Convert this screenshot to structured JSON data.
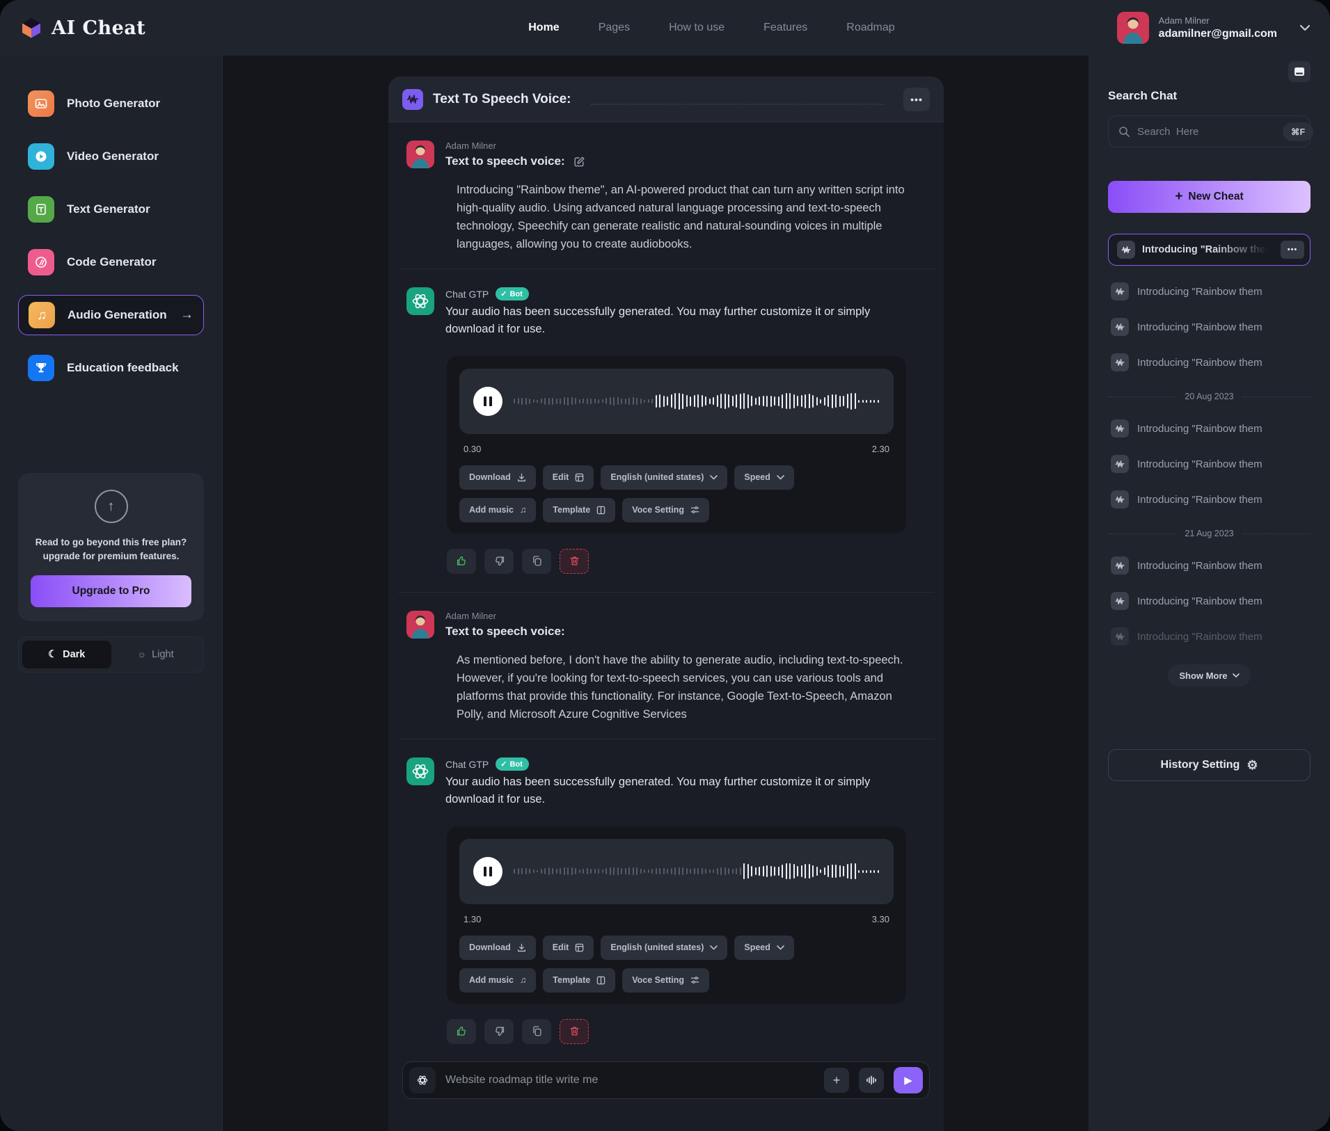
{
  "colors": {
    "accent_purple": "#8b5cf6",
    "gradient_from": "#8a4ef7",
    "gradient_to": "#dcc1ff",
    "bot_badge_teal": "#2fbfa4",
    "thumb_up_green": "#4cc05e",
    "trash_red": "#e0505e",
    "chatgpt_green": "#19a37f",
    "panel_bg": "#1a1d25",
    "navbar_bg": "#20242d"
  },
  "nav": {
    "logo_text": "AI Cheat",
    "items": [
      "Home",
      "Pages",
      "How to use",
      "Features",
      "Roadmap"
    ],
    "active_item": "Home",
    "user": {
      "name": "Adam Milner",
      "email": "adamilner@gmail.com"
    }
  },
  "sidebar": {
    "items": [
      {
        "label": "Photo Generator"
      },
      {
        "label": "Video Generator"
      },
      {
        "label": "Text Generator"
      },
      {
        "label": "Code Generator"
      },
      {
        "label": "Audio Generation"
      },
      {
        "label": "Education feedback"
      }
    ],
    "selected_item": "Audio Generation",
    "upgrade": {
      "line1": "Read to go beyond this free plan?",
      "line2": "upgrade for premium features.",
      "button": "Upgrade to Pro"
    },
    "theme": {
      "dark": "Dark",
      "light": "Light"
    }
  },
  "chat": {
    "title": "Text To Speech Voice:",
    "messages": [
      {
        "name": "Adam Milner",
        "prompt": "Text to speech voice:",
        "body": "Introducing \"Rainbow theme\", an AI-powered product that can turn any written script into high-quality audio. Using advanced natural language processing and text-to-speech technology, Speechify can generate realistic and natural-sounding voices in multiple languages, allowing you to create audiobooks."
      },
      {
        "name": "Chat GTP",
        "badge": "Bot",
        "body": "Your audio has been successfully generated. You may further customize it or simply download it for use.",
        "time_start": "0.30",
        "time_end": "2.30"
      },
      {
        "name": "Adam Milner",
        "prompt": "Text to speech voice:",
        "body": "As mentioned before, I don't have the ability to generate audio, including text-to-speech. However, if you're looking for text-to-speech services, you can use various tools and platforms that provide this functionality. For instance, Google Text-to-Speech, Amazon Polly, and Microsoft Azure Cognitive Services"
      },
      {
        "name": "Chat GTP",
        "badge": "Bot",
        "body": "Your audio has been successfully generated. You may further customize it or simply download it for use.",
        "time_start": "1.30",
        "time_end": "3.30"
      }
    ],
    "player_buttons": {
      "download": "Download",
      "edit": "Edit",
      "language": "English (united states)",
      "speed": "Speed",
      "add_music": "Add music",
      "template": "Template",
      "voice_setting": "Voce Setting"
    },
    "input": {
      "placeholder": "Website roadmap title write me"
    }
  },
  "right": {
    "title": "Search Chat",
    "search_placeholder": "Search  Here",
    "shortcut": "⌘F",
    "new_cheat": "New Cheat",
    "pinned": "Introducing \"Rainbow theme\", a",
    "sections": [
      {
        "items": [
          "Introducing \"Rainbow them",
          "Introducing \"Rainbow them",
          "Introducing \"Rainbow them"
        ]
      },
      {
        "date": "20 Aug 2023",
        "items": [
          "Introducing \"Rainbow them",
          "Introducing \"Rainbow them",
          "Introducing \"Rainbow them"
        ]
      },
      {
        "date": "21 Aug 2023",
        "items": [
          "Introducing \"Rainbow them",
          "Introducing \"Rainbow them",
          "Introducing \"Rainbow them"
        ]
      }
    ],
    "show_more": "Show More",
    "history_setting": "History Setting"
  }
}
